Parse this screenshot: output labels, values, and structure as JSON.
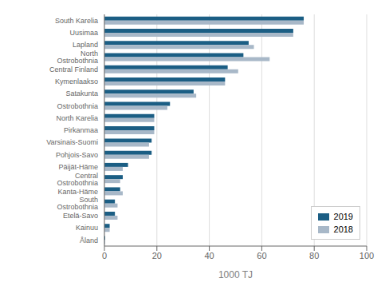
{
  "chart_data": {
    "type": "bar",
    "orientation": "horizontal",
    "categories": [
      "South Karelia",
      "Uusimaa",
      "Lapland",
      "North Ostrobothnia",
      "Central Finland",
      "Kymenlaakso",
      "Satakunta",
      "Ostrobothnia",
      "North Karelia",
      "Pirkanmaa",
      "Varsinais-Suomi",
      "Pohjois-Savo",
      "Päijät-Häme",
      "Central Ostrobothnia",
      "Kanta-Häme",
      "South Ostrobothnia",
      "Etelä-Savo",
      "Kainuu",
      "Åland"
    ],
    "series": [
      {
        "name": "2019",
        "color": "#1b5e84",
        "values": [
          76,
          72,
          55,
          53,
          47,
          46,
          34,
          25,
          19,
          19,
          18,
          18,
          9,
          7,
          6,
          4,
          4,
          2,
          0.3
        ]
      },
      {
        "name": "2018",
        "color": "#a8b8c8",
        "values": [
          76,
          72,
          57,
          63,
          51,
          46,
          35,
          24,
          19,
          19,
          17,
          17,
          7,
          6,
          7,
          5,
          5,
          2,
          0.3
        ]
      }
    ],
    "xlabel": "1000 TJ",
    "xlim": [
      0,
      100
    ],
    "xticks": [
      0,
      20,
      40,
      60,
      80,
      100
    ],
    "grid": true,
    "legend": "lower right"
  }
}
